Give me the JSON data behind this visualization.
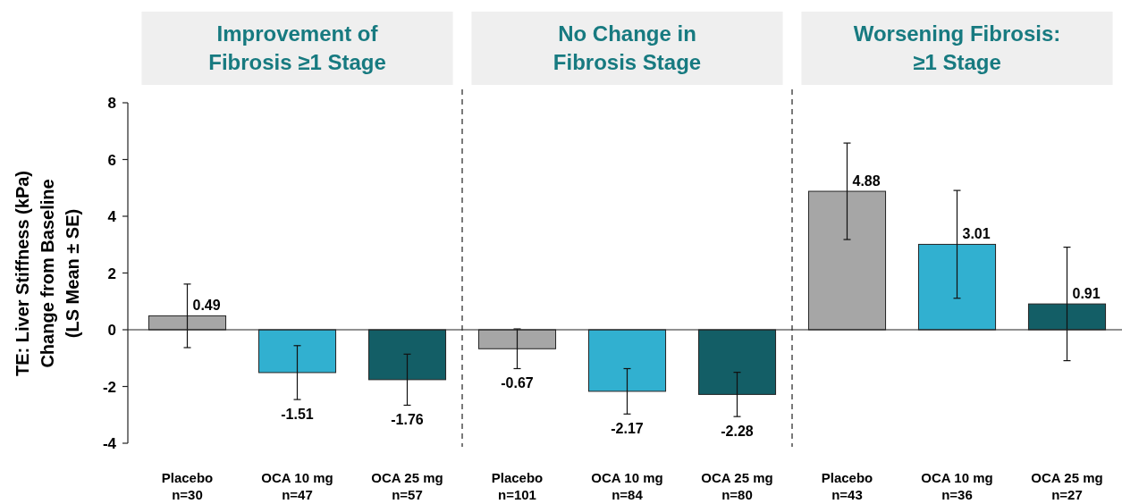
{
  "chart_data": {
    "type": "bar",
    "ylabel": "TE: Liver Stiffness (kPa)\nChange from Baseline\n(LS Mean ± SE)",
    "categories": [
      "Placebo\nn=30",
      "OCA 10 mg\nn=47",
      "OCA 25 mg\nn=57",
      "Placebo\nn=101",
      "OCA 10 mg\nn=84",
      "OCA 25 mg\nn=80",
      "Placebo\nn=43",
      "OCA 10 mg\nn=36",
      "OCA 25 mg\nn=27"
    ],
    "values": [
      0.49,
      -1.51,
      -1.76,
      -0.67,
      -2.17,
      -2.28,
      4.88,
      3.01,
      0.91
    ],
    "errors": [
      1.12,
      0.95,
      0.9,
      0.7,
      0.8,
      0.78,
      1.7,
      1.9,
      2.0
    ],
    "colors": [
      "#a6a6a6",
      "#31b0d0",
      "#135e66",
      "#a6a6a6",
      "#31b0d0",
      "#135e66",
      "#a6a6a6",
      "#31b0d0",
      "#135e66"
    ],
    "data_labels": true,
    "ylim": [
      -4,
      8
    ],
    "yticks": [
      -4,
      -2,
      0,
      2,
      4,
      6,
      8
    ],
    "annotations": [
      "Improvement of\nFibrosis ≥1 Stage",
      "No Change in\nFibrosis Stage",
      "Worsening Fibrosis:\n≥1 Stage"
    ]
  }
}
